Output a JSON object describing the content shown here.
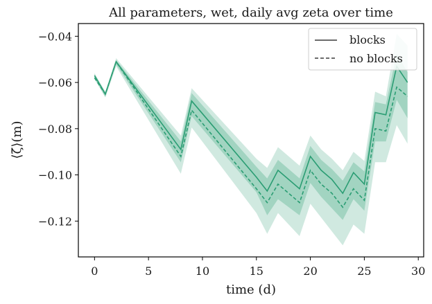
{
  "chart_data": {
    "type": "line",
    "title": "All parameters, wet, daily avg zeta over time",
    "xlabel": "time (d)",
    "ylabel": "⟨ζ̄⟩(m)",
    "xlim": [
      -1.5,
      30.5
    ],
    "ylim": [
      -0.1355,
      -0.0345
    ],
    "xticks": [
      0,
      5,
      10,
      15,
      20,
      25,
      30
    ],
    "yticks": [
      -0.04,
      -0.06,
      -0.08,
      -0.1,
      -0.12
    ],
    "ytick_labels": [
      "−0.04",
      "−0.06",
      "−0.08",
      "−0.10",
      "−0.12"
    ],
    "grid": false,
    "legend_position": "top-right",
    "x": [
      0,
      1,
      2,
      8,
      9,
      15,
      16,
      17,
      19,
      20,
      21,
      22,
      23,
      24,
      25,
      26,
      27,
      28,
      29
    ],
    "series": [
      {
        "name": "blocks",
        "style": "solid",
        "color": "#2a9d73",
        "values": [
          -0.057,
          -0.065,
          -0.051,
          -0.089,
          -0.068,
          -0.101,
          -0.107,
          -0.098,
          -0.106,
          -0.092,
          -0.098,
          -0.102,
          -0.108,
          -0.099,
          -0.104,
          -0.073,
          -0.074,
          -0.053,
          -0.06
        ],
        "band_inner": {
          "upper": [
            -0.0563,
            -0.0643,
            -0.0503,
            -0.0855,
            -0.0646,
            -0.0965,
            -0.1015,
            -0.0935,
            -0.1015,
            -0.0875,
            -0.0935,
            -0.0975,
            -0.1025,
            -0.0945,
            -0.0985,
            -0.0685,
            -0.0695,
            -0.0475,
            -0.0555
          ],
          "lower": [
            -0.0582,
            -0.0662,
            -0.0522,
            -0.0945,
            -0.0746,
            -0.1075,
            -0.1175,
            -0.1105,
            -0.1175,
            -0.1035,
            -0.1095,
            -0.1145,
            -0.1195,
            -0.1105,
            -0.1155,
            -0.0855,
            -0.0855,
            -0.0675,
            -0.0755
          ]
        },
        "band_outer": {
          "upper": [
            -0.056,
            -0.064,
            -0.0495,
            -0.083,
            -0.0625,
            -0.093,
            -0.097,
            -0.088,
            -0.096,
            -0.083,
            -0.089,
            -0.093,
            -0.098,
            -0.09,
            -0.094,
            -0.064,
            -0.066,
            -0.039,
            -0.044
          ],
          "lower": [
            -0.0585,
            -0.0665,
            -0.053,
            -0.0995,
            -0.0795,
            -0.1165,
            -0.1255,
            -0.1165,
            -0.1265,
            -0.1125,
            -0.1185,
            -0.1245,
            -0.1305,
            -0.1215,
            -0.1255,
            -0.0945,
            -0.0945,
            -0.0785,
            -0.0865
          ]
        }
      },
      {
        "name": "no blocks",
        "style": "dashed",
        "color": "#2a9d73",
        "values": [
          -0.058,
          -0.065,
          -0.051,
          -0.092,
          -0.072,
          -0.106,
          -0.112,
          -0.104,
          -0.112,
          -0.098,
          -0.104,
          -0.108,
          -0.114,
          -0.106,
          -0.111,
          -0.08,
          -0.081,
          -0.062,
          -0.066
        ]
      }
    ]
  }
}
